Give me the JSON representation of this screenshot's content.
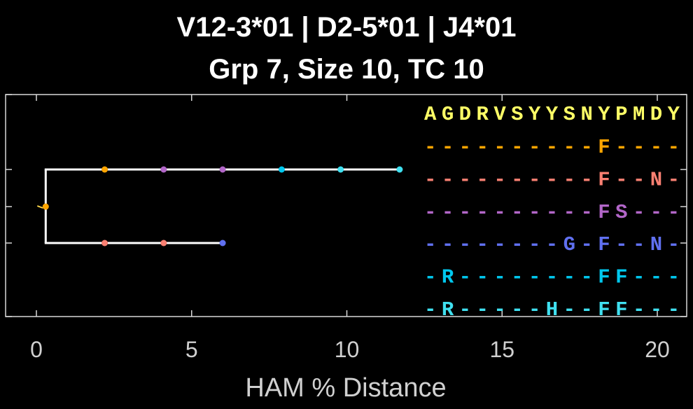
{
  "title": {
    "line1": "V12-3*01 | D2-5*01 | J4*01",
    "line2": "Grp 7, Size 10, TC 10"
  },
  "chart_data": {
    "type": "dendrogram",
    "xlabel": "HAM % Distance",
    "xlim": [
      -1,
      21
    ],
    "xticks": [
      0,
      5,
      10,
      15,
      20
    ],
    "xtick_labels": [
      "0",
      "5",
      "10",
      "15",
      "20"
    ],
    "tree": {
      "root": {
        "x": 0.3,
        "color": "#ffa500"
      },
      "branch_x": 0.3,
      "lineages": [
        {
          "end_x": 11.7,
          "nodes": [
            {
              "x": 2.2,
              "color": "#ffa500"
            },
            {
              "x": 4.1,
              "color": "#b266c8"
            },
            {
              "x": 6.0,
              "color": "#b266c8"
            },
            {
              "x": 7.9,
              "color": "#00c8ee"
            },
            {
              "x": 9.8,
              "color": "#40e0f0"
            },
            {
              "x": 11.7,
              "color": "#40e0f0"
            }
          ]
        },
        {
          "end_x": 6.0,
          "nodes": [
            {
              "x": 2.2,
              "color": "#fa8072"
            },
            {
              "x": 4.1,
              "color": "#fa8072"
            },
            {
              "x": 6.0,
              "color": "#6070f0"
            }
          ]
        }
      ]
    },
    "alignment": {
      "reference": {
        "text": "AGDRVSYYSNYPMDY",
        "color": "#ffff66"
      },
      "rows": [
        {
          "text": "----------F----",
          "color": "#ffa500"
        },
        {
          "text": "----------F--N-",
          "color": "#fa8072"
        },
        {
          "text": "----------FS---",
          "color": "#b266c8"
        },
        {
          "text": "--------G-F--N-",
          "color": "#6070f0"
        },
        {
          "text": "-R--------FF---",
          "color": "#00c8ee"
        },
        {
          "text": "-R-----H--FF---",
          "color": "#40e0f0"
        }
      ]
    }
  }
}
